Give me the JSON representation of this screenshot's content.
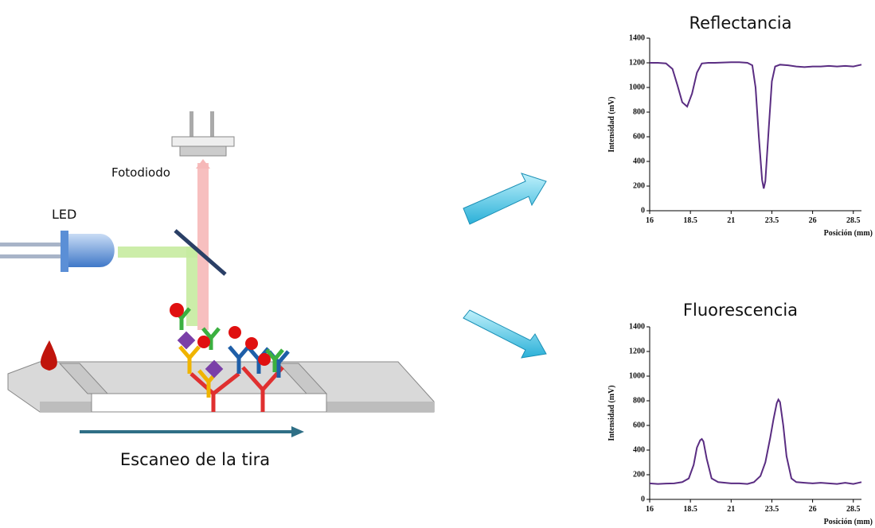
{
  "labels": {
    "photodiode": "Fotodiodo",
    "led": "LED",
    "scan": "Escaneo de la tira"
  },
  "chart_data": [
    {
      "type": "line",
      "title": "Reflectancia",
      "x_label": "Posición (mm)",
      "y_label": "Intensidad (mV)",
      "xlim": [
        16,
        29
      ],
      "xticks": [
        16,
        18.5,
        21,
        23.5,
        26,
        28.5
      ],
      "ylim": [
        0,
        1400
      ],
      "yticks": [
        0,
        200,
        400,
        600,
        800,
        1000,
        1200,
        1400
      ],
      "x": [
        16,
        16.5,
        17,
        17.4,
        17.7,
        18.0,
        18.3,
        18.6,
        18.9,
        19.2,
        19.6,
        20,
        21,
        21.5,
        22,
        22.3,
        22.5,
        22.7,
        22.9,
        23.0,
        23.1,
        23.3,
        23.5,
        23.7,
        24,
        24.5,
        25,
        25.5,
        26,
        26.5,
        27,
        27.5,
        28,
        28.5,
        29
      ],
      "series": [
        {
          "color": "#5a2d82",
          "values": [
            1200,
            1200,
            1195,
            1150,
            1020,
            880,
            845,
            950,
            1120,
            1195,
            1200,
            1200,
            1205,
            1205,
            1200,
            1180,
            1000,
            600,
            250,
            180,
            240,
            650,
            1050,
            1170,
            1185,
            1180,
            1170,
            1165,
            1170,
            1170,
            1175,
            1170,
            1175,
            1170,
            1185
          ]
        }
      ]
    },
    {
      "type": "line",
      "title": "Fluorescencia",
      "x_label": "Posición (mm)",
      "y_label": "Intensidad (mV)",
      "xlim": [
        16,
        29
      ],
      "xticks": [
        16,
        18.5,
        21,
        23.5,
        26,
        28.5
      ],
      "ylim": [
        0,
        1400
      ],
      "yticks": [
        0,
        200,
        400,
        600,
        800,
        1000,
        1200,
        1400
      ],
      "x": [
        16,
        16.5,
        17,
        17.5,
        18,
        18.4,
        18.7,
        18.9,
        19.1,
        19.2,
        19.3,
        19.5,
        19.8,
        20.2,
        21,
        21.5,
        22,
        22.4,
        22.8,
        23.1,
        23.4,
        23.6,
        23.8,
        23.9,
        24.0,
        24.2,
        24.4,
        24.7,
        25,
        25.5,
        26,
        26.5,
        27,
        27.5,
        28,
        28.5,
        29
      ],
      "series": [
        {
          "color": "#5a2d82",
          "values": [
            130,
            125,
            128,
            130,
            140,
            170,
            280,
            420,
            480,
            490,
            470,
            330,
            170,
            140,
            130,
            130,
            125,
            140,
            190,
            300,
            500,
            650,
            780,
            810,
            790,
            600,
            350,
            170,
            140,
            135,
            130,
            135,
            130,
            125,
            135,
            125,
            140
          ]
        }
      ]
    }
  ]
}
